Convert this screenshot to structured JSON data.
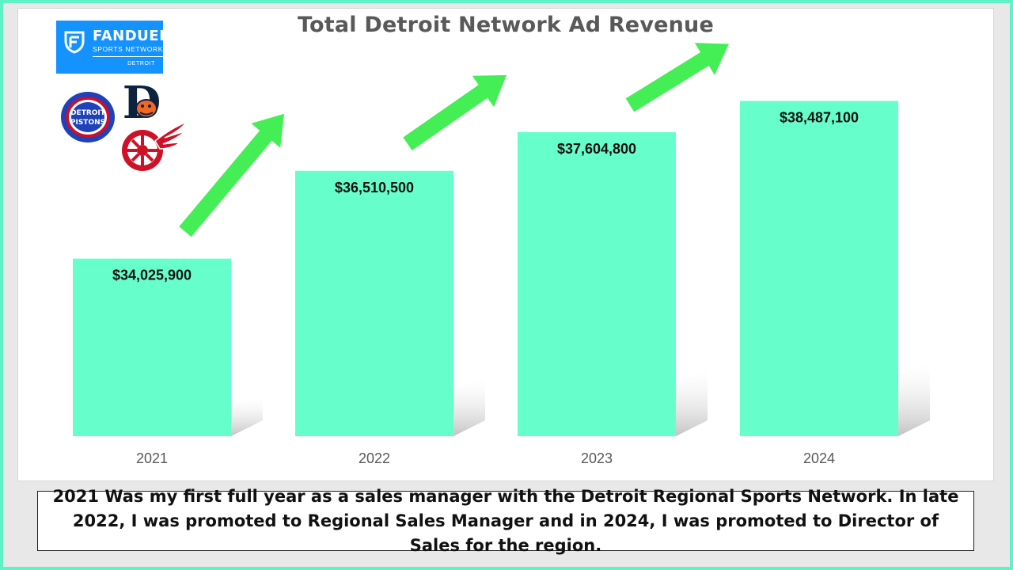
{
  "chart_data": {
    "type": "bar",
    "title": "Total Detroit Network Ad Revenue",
    "categories": [
      "2021",
      "2022",
      "2023",
      "2024"
    ],
    "values": [
      34025900,
      36510500,
      37604800,
      38487100
    ],
    "value_labels": [
      "$34,025,900",
      "$36,510,500",
      "$37,604,800",
      "$38,487,100"
    ],
    "xlabel": "",
    "ylabel": "",
    "ylim": [
      29000000,
      40000000
    ],
    "grid": false,
    "legend": "none",
    "bar_color": "#66ffcc",
    "arrow_color": "#44ee55"
  },
  "logos": {
    "fanduel": {
      "brand": "FANDUEL",
      "subtitle": "SPORTS NETWORK",
      "city": "DETROIT",
      "color": "#1493ff"
    },
    "pistons": {
      "text_top": "DETROIT",
      "text_bottom": "PISTONS"
    },
    "tigers": {
      "letter": "D"
    },
    "red_wings": {}
  },
  "caption": "2021 Was my first full year as a sales manager with the Detroit Regional Sports Network. In late 2022, I was promoted to Regional Sales Manager and in 2024, I was promoted to Director of Sales for the region."
}
